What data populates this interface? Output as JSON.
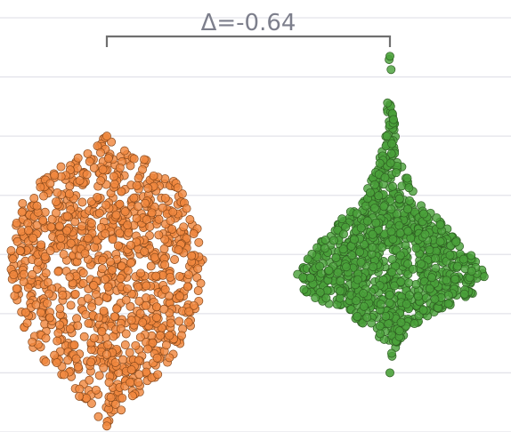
{
  "chart_data": {
    "type": "scatter",
    "subtype": "swarm",
    "title": "",
    "xlabel": "",
    "ylabel": "",
    "grid": true,
    "ylim": [
      0,
      7
    ],
    "gridlines": [
      0,
      1,
      2,
      3,
      4,
      5,
      6,
      7
    ],
    "series": [
      {
        "color": "#f0883e",
        "count": 1000,
        "center": 2.9,
        "min": 0.1,
        "max": 5.0,
        "width_profile": [
          [
            0.1,
            0.02
          ],
          [
            0.5,
            0.22
          ],
          [
            0.8,
            0.42
          ],
          [
            1.1,
            0.62
          ],
          [
            1.5,
            0.8
          ],
          [
            2.0,
            0.92
          ],
          [
            2.6,
            0.98
          ],
          [
            3.2,
            0.98
          ],
          [
            3.7,
            0.93
          ],
          [
            4.2,
            0.72
          ],
          [
            4.6,
            0.4
          ],
          [
            4.8,
            0.12
          ],
          [
            5.0,
            0.02
          ]
        ]
      },
      {
        "color": "#4aa13a",
        "count": 1000,
        "center": 2.5,
        "min": 1.0,
        "max": 6.35,
        "width_profile": [
          [
            1.0,
            0.01
          ],
          [
            1.3,
            0.03
          ],
          [
            1.6,
            0.12
          ],
          [
            2.0,
            0.42
          ],
          [
            2.3,
            0.82
          ],
          [
            2.6,
            1.0
          ],
          [
            3.0,
            0.84
          ],
          [
            3.5,
            0.55
          ],
          [
            4.0,
            0.26
          ],
          [
            4.5,
            0.12
          ],
          [
            5.0,
            0.06
          ],
          [
            5.5,
            0.03
          ],
          [
            5.9,
            0.015
          ],
          [
            6.35,
            0.01
          ]
        ]
      }
    ],
    "annotation": {
      "text": "Δ=-0.64",
      "value": -0.64
    }
  }
}
